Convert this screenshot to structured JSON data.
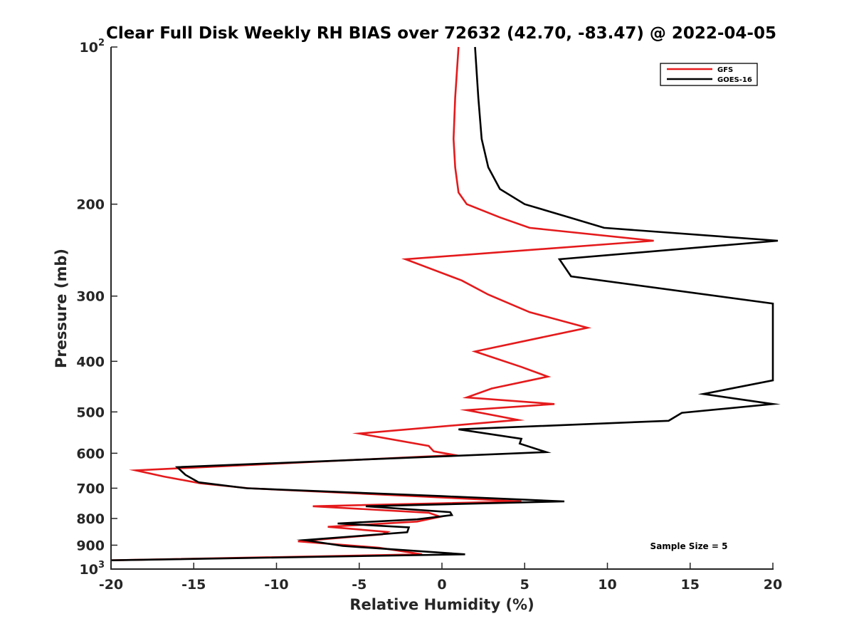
{
  "chart_data": {
    "type": "line",
    "title": "Clear Full Disk Weekly RH BIAS over 72632 (42.70, -83.47) @ 2022-04-05",
    "xlabel": "Relative Humidity (%)",
    "ylabel": "Pressure (mb)",
    "xlim": [
      -20,
      20
    ],
    "ylim": [
      100,
      1000
    ],
    "yscale": "log",
    "y_reversed": true,
    "grid": false,
    "legend_position": "top-right",
    "x_ticks": [
      "-20",
      "-15",
      "-10",
      "-5",
      "0",
      "5",
      "10",
      "15",
      "20"
    ],
    "y_ticks": [
      {
        "value": 100,
        "label": "10",
        "sup": "2"
      },
      {
        "value": 200,
        "label": "200",
        "sup": ""
      },
      {
        "value": 300,
        "label": "300",
        "sup": ""
      },
      {
        "value": 400,
        "label": "400",
        "sup": ""
      },
      {
        "value": 500,
        "label": "500",
        "sup": ""
      },
      {
        "value": 600,
        "label": "600",
        "sup": ""
      },
      {
        "value": 700,
        "label": "700",
        "sup": ""
      },
      {
        "value": 800,
        "label": "800",
        "sup": ""
      },
      {
        "value": 900,
        "label": "900",
        "sup": ""
      },
      {
        "value": 1000,
        "label": "10",
        "sup": "3"
      }
    ],
    "series": [
      {
        "name": "GFS",
        "color": "#e41a1c",
        "points": [
          [
            1.0,
            100
          ],
          [
            0.8,
            125
          ],
          [
            0.7,
            150
          ],
          [
            0.8,
            170
          ],
          [
            1.0,
            190
          ],
          [
            1.5,
            200
          ],
          [
            3.5,
            212
          ],
          [
            5.3,
            222
          ],
          [
            12.8,
            235
          ],
          [
            -2.2,
            255
          ],
          [
            1.2,
            280
          ],
          [
            2.8,
            298
          ],
          [
            5.3,
            322
          ],
          [
            8.8,
            345
          ],
          [
            2.0,
            383
          ],
          [
            4.8,
            410
          ],
          [
            6.4,
            428
          ],
          [
            3.0,
            451
          ],
          [
            1.5,
            469
          ],
          [
            6.8,
            483
          ],
          [
            1.5,
            496
          ],
          [
            4.6,
            518
          ],
          [
            -5.0,
            550
          ],
          [
            -0.8,
            581
          ],
          [
            -0.5,
            595
          ],
          [
            0.8,
            605
          ],
          [
            -18.5,
            647
          ],
          [
            -16.8,
            665
          ],
          [
            -14.6,
            685
          ],
          [
            -11.7,
            700
          ],
          [
            0.3,
            730
          ],
          [
            4.8,
            742
          ],
          [
            -7.8,
            758
          ],
          [
            -0.8,
            780
          ],
          [
            -0.1,
            794
          ],
          [
            -1.5,
            811
          ],
          [
            -6.9,
            830
          ],
          [
            -3.3,
            849
          ],
          [
            -3.6,
            858
          ],
          [
            -8.7,
            885
          ],
          [
            -3.8,
            910
          ],
          [
            -1.2,
            937
          ],
          [
            -20.0,
            962
          ]
        ]
      },
      {
        "name": "GOES-16",
        "color": "#000000",
        "points": [
          [
            2.0,
            100
          ],
          [
            2.2,
            125
          ],
          [
            2.4,
            150
          ],
          [
            2.8,
            170
          ],
          [
            3.5,
            187
          ],
          [
            5.0,
            200
          ],
          [
            7.7,
            212
          ],
          [
            9.8,
            222
          ],
          [
            20.3,
            235
          ],
          [
            7.1,
            255
          ],
          [
            7.8,
            275
          ],
          [
            20.0,
            310
          ],
          [
            20.0,
            435
          ],
          [
            15.8,
            462
          ],
          [
            20.0,
            483
          ],
          [
            14.5,
            502
          ],
          [
            13.7,
            520
          ],
          [
            1.0,
            540
          ],
          [
            4.8,
            563
          ],
          [
            4.7,
            575
          ],
          [
            6.3,
            597
          ],
          [
            -16.0,
            638
          ],
          [
            -15.5,
            660
          ],
          [
            -14.7,
            682
          ],
          [
            -11.8,
            700
          ],
          [
            0.0,
            725
          ],
          [
            7.4,
            742
          ],
          [
            -4.6,
            758
          ],
          [
            0.5,
            778
          ],
          [
            0.6,
            788
          ],
          [
            -1.5,
            803
          ],
          [
            -6.3,
            818
          ],
          [
            -2.0,
            832
          ],
          [
            -2.1,
            850
          ],
          [
            -8.3,
            880
          ],
          [
            -6.0,
            903
          ],
          [
            1.4,
            937
          ],
          [
            -20.0,
            962
          ]
        ]
      }
    ],
    "annotations": [
      "Sample Size = 5"
    ]
  }
}
